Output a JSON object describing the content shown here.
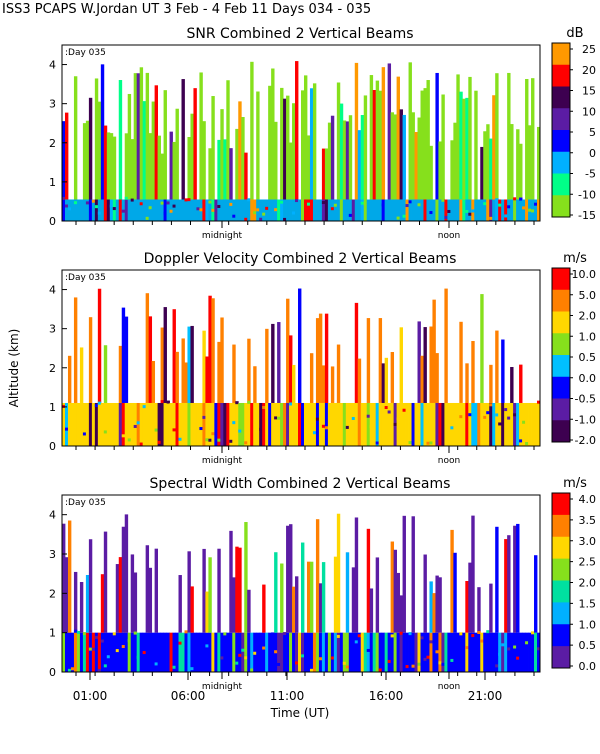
{
  "header": {
    "title": "ISS3 PCAPS W.Jordan UT    3 Feb -   4 Feb 11 Days 034 - 035"
  },
  "chart_data": [
    {
      "type": "heatmap",
      "title": "SNR Combined 2 Vertical Beams",
      "day_label": "Day 035",
      "marker_labels": [
        "midnight",
        "noon"
      ],
      "units": "dB",
      "colorbar_ticks": [
        "25",
        "20",
        "15",
        "10",
        "5",
        "0",
        "-5",
        "-10",
        "-15"
      ],
      "colors": [
        "#ff9900",
        "#ff0000",
        "#3d0050",
        "#5b1ca4",
        "#0000ff",
        "#00b0ff",
        "#00ff88",
        "#86e01c"
      ],
      "yticks": [
        "0",
        "1",
        "2",
        "3",
        "4"
      ],
      "ylim": [
        0,
        4.5
      ],
      "data_top_km": 4.1,
      "bottom_layer_km": 0.55,
      "bottom_layer_color": "#00a8e8",
      "fill_color": "#86e01c",
      "gap_density": 0.28
    },
    {
      "type": "heatmap",
      "title": "Doppler Velocity Combined 2 Vertical Beams",
      "day_label": "Day 035",
      "marker_labels": [
        "midnight",
        "noon"
      ],
      "units": "m/s",
      "colorbar_ticks": [
        "10.0",
        "5.0",
        "2.0",
        "1.0",
        "0.5",
        "0.0",
        "-0.5",
        "-1.0",
        "-2.0"
      ],
      "colors": [
        "#ff0000",
        "#ff8000",
        "#ffd700",
        "#86e01c",
        "#00c0ff",
        "#0000ff",
        "#5b1ca4",
        "#3d0050"
      ],
      "yticks": [
        "0",
        "1",
        "2",
        "3",
        "4"
      ],
      "ylim": [
        0,
        4.5
      ],
      "data_top_km": 4.1,
      "bottom_layer_km": 1.1,
      "bottom_layer_color": "#ffd700",
      "fill_color": "#ff8000",
      "gap_density": 0.6
    },
    {
      "type": "heatmap",
      "title": "Spectral Width Combined 2 Vertical Beams",
      "day_label": "Day 035",
      "marker_labels": [
        "midnight",
        "noon"
      ],
      "units": "m/s",
      "colorbar_ticks": [
        "4.0",
        "3.5",
        "3.0",
        "2.5",
        "2.0",
        "1.5",
        "1.0",
        "0.5",
        "0.0"
      ],
      "colors": [
        "#ff0000",
        "#ff8000",
        "#ffd700",
        "#86e01c",
        "#00e0a0",
        "#00b0ff",
        "#0000ff",
        "#5b1ca4"
      ],
      "yticks": [
        "0",
        "1",
        "2",
        "3",
        "4"
      ],
      "ylim": [
        0,
        4.5
      ],
      "data_top_km": 4.1,
      "bottom_layer_km": 1.0,
      "bottom_layer_color": "#0000ff",
      "fill_color": "#5b1ca4",
      "gap_density": 0.5
    }
  ],
  "axes": {
    "ylabel": "Altitude (km)",
    "xlabel": "Time (UT)",
    "xticks": [
      "01:00",
      "06:00",
      "11:00",
      "16:00",
      "21:00"
    ]
  }
}
